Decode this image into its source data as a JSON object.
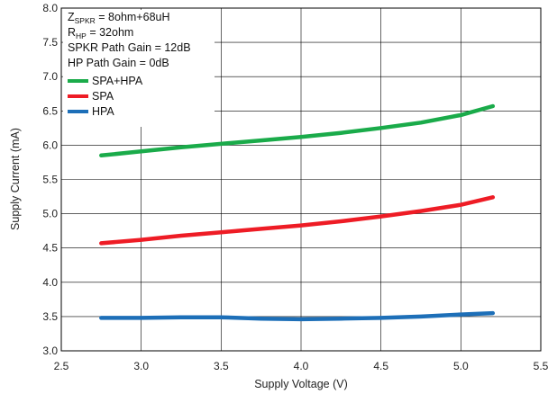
{
  "chart_data": {
    "type": "line",
    "title": "",
    "xlabel": "Supply Voltage (V)",
    "ylabel": "Supply Current (mA)",
    "xlim": [
      2.5,
      5.5
    ],
    "ylim": [
      3.0,
      8.0
    ],
    "xticks": [
      2.5,
      3.0,
      3.5,
      4.0,
      4.5,
      5.0,
      5.5
    ],
    "yticks": [
      3.0,
      3.5,
      4.0,
      4.5,
      5.0,
      5.5,
      6.0,
      6.5,
      7.0,
      7.5,
      8.0
    ],
    "grid": true,
    "legend_position": "top-left",
    "annotations": [
      {
        "main": "Z",
        "sub": "SPKR",
        "rest": " = 8ohm+68uH"
      },
      {
        "main": "R",
        "sub": "HP",
        "rest": " = 32ohm"
      },
      {
        "main": "SPKR Path Gain = 12dB",
        "sub": "",
        "rest": ""
      },
      {
        "main": "HP Path Gain = 0dB",
        "sub": "",
        "rest": ""
      }
    ],
    "series": [
      {
        "name": "SPA+HPA",
        "color": "#1aab4a",
        "x": [
          2.75,
          3.0,
          3.25,
          3.5,
          3.75,
          4.0,
          4.25,
          4.5,
          4.75,
          5.0,
          5.2
        ],
        "y": [
          5.85,
          5.91,
          5.97,
          6.02,
          6.07,
          6.12,
          6.18,
          6.25,
          6.33,
          6.44,
          6.57
        ]
      },
      {
        "name": "SPA",
        "color": "#ee1c25",
        "x": [
          2.75,
          3.0,
          3.25,
          3.5,
          3.75,
          4.0,
          4.25,
          4.5,
          4.75,
          5.0,
          5.2
        ],
        "y": [
          4.57,
          4.62,
          4.68,
          4.73,
          4.78,
          4.83,
          4.89,
          4.96,
          5.04,
          5.13,
          5.24
        ]
      },
      {
        "name": "HPA",
        "color": "#1d6fb8",
        "x": [
          2.75,
          3.0,
          3.25,
          3.5,
          3.75,
          4.0,
          4.25,
          4.5,
          4.75,
          5.0,
          5.2
        ],
        "y": [
          3.48,
          3.48,
          3.49,
          3.49,
          3.47,
          3.46,
          3.47,
          3.48,
          3.5,
          3.53,
          3.55
        ]
      }
    ]
  }
}
